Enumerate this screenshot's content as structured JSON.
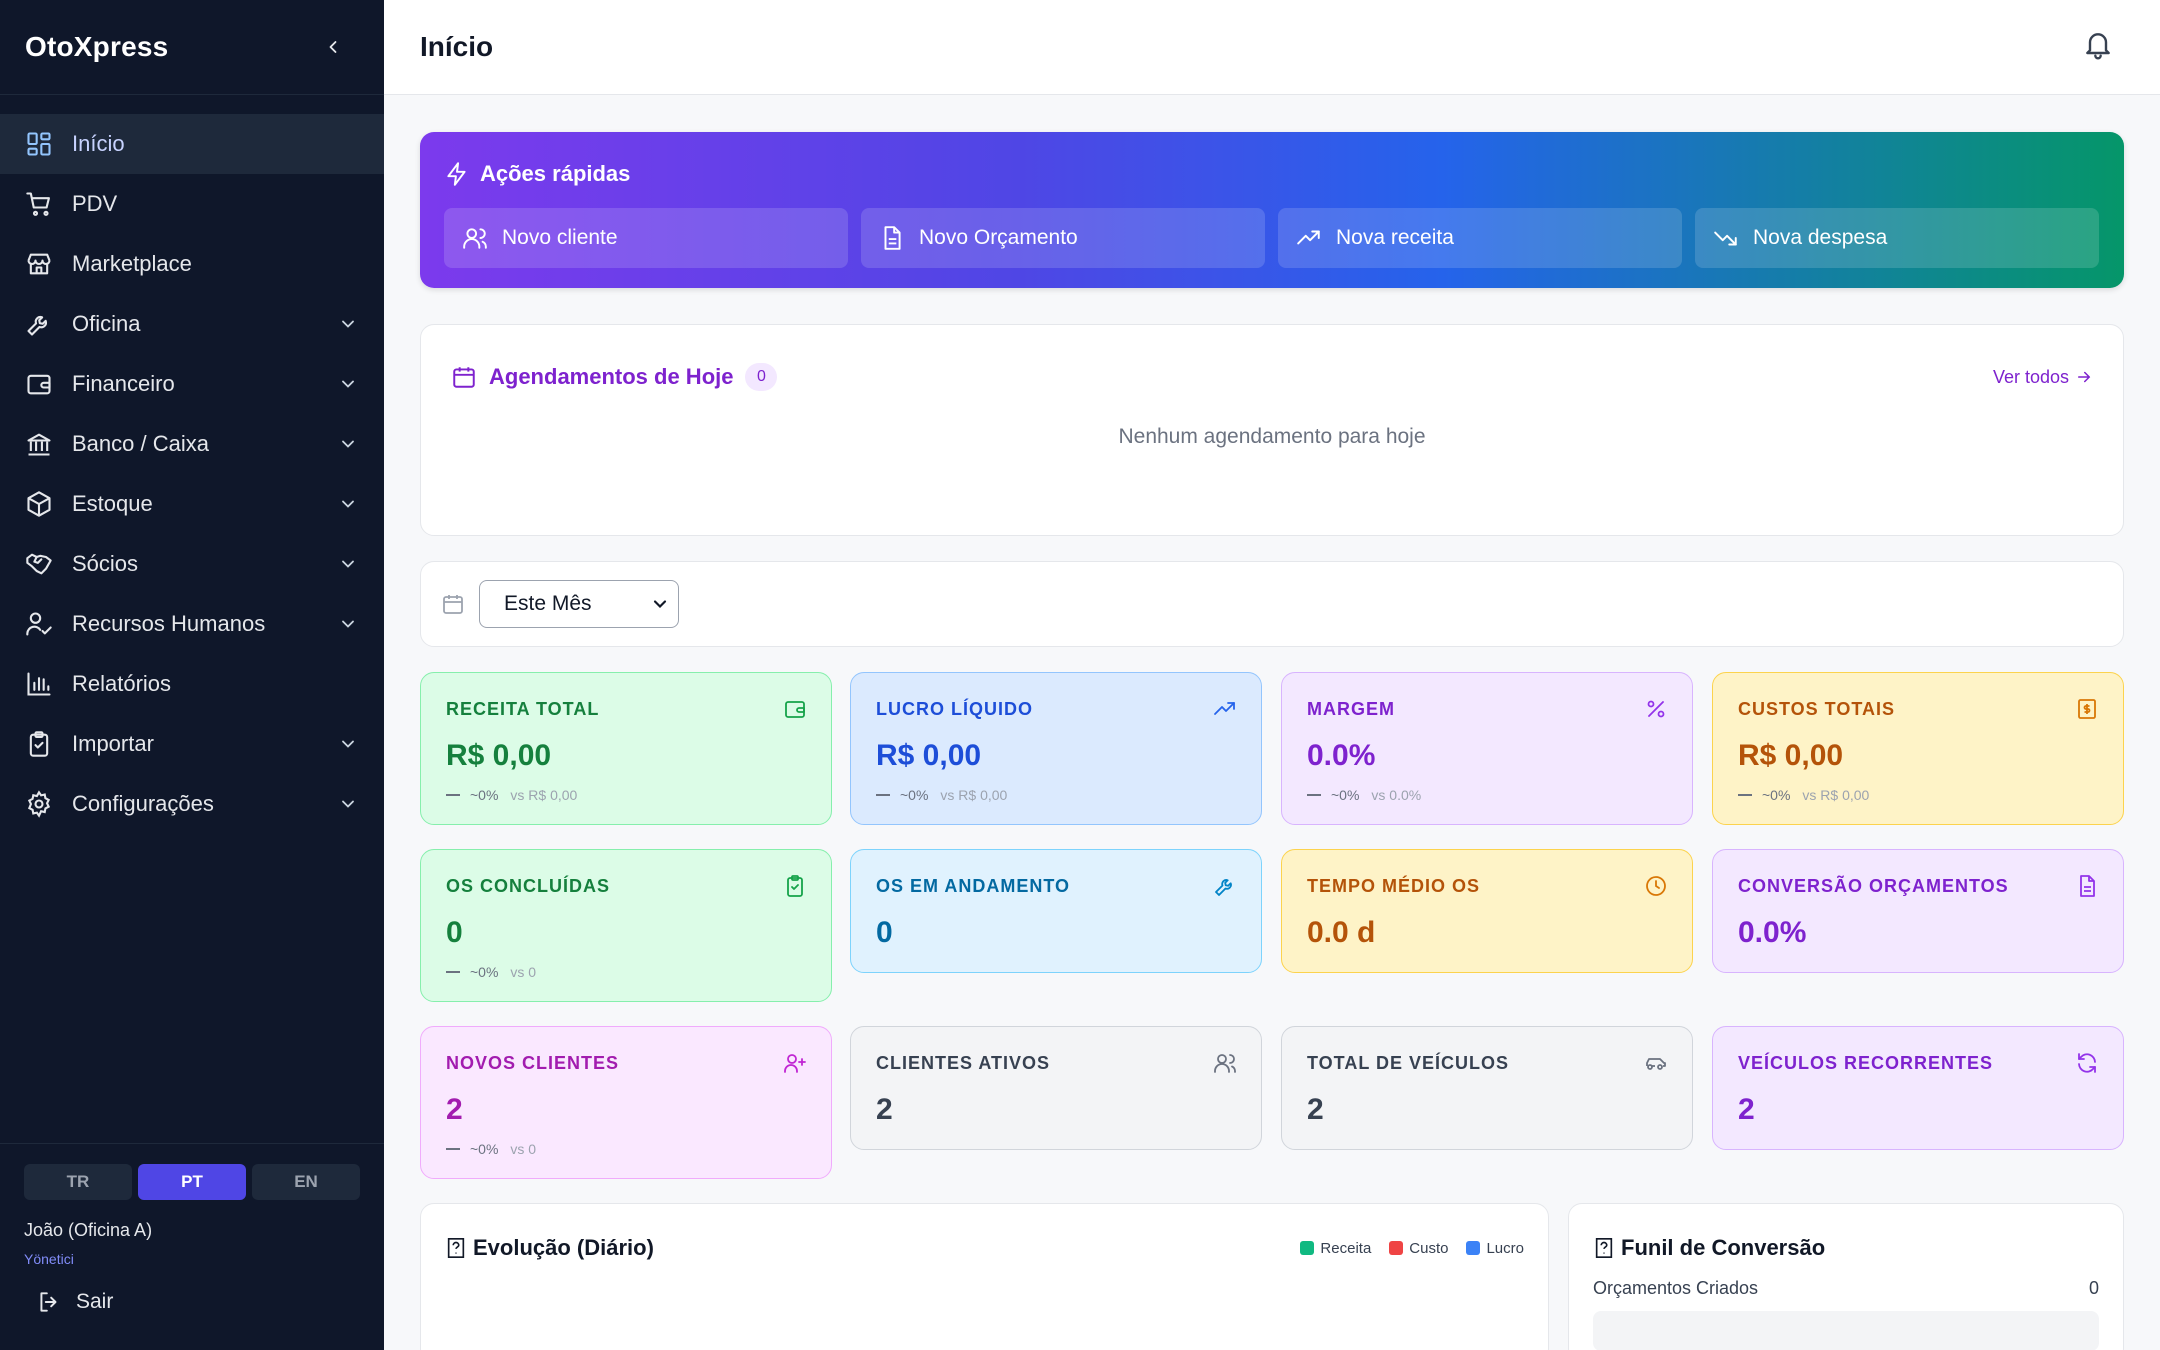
{
  "app": {
    "brand": "OtoXpress"
  },
  "sidebar": {
    "items": [
      {
        "label": "Início",
        "icon": "dashboard-grid-icon",
        "active": true,
        "expandable": false
      },
      {
        "label": "PDV",
        "icon": "cart-icon",
        "expandable": false
      },
      {
        "label": "Marketplace",
        "icon": "store-icon",
        "expandable": false
      },
      {
        "label": "Oficina",
        "icon": "wrench-icon",
        "expandable": true
      },
      {
        "label": "Financeiro",
        "icon": "wallet-icon",
        "expandable": true
      },
      {
        "label": "Banco / Caixa",
        "icon": "bank-icon",
        "expandable": true
      },
      {
        "label": "Estoque",
        "icon": "box-icon",
        "expandable": true
      },
      {
        "label": "Sócios",
        "icon": "handshake-icon",
        "expandable": true
      },
      {
        "label": "Recursos Humanos",
        "icon": "user-check-icon",
        "expandable": true
      },
      {
        "label": "Relatórios",
        "icon": "bar-chart-icon",
        "expandable": false
      },
      {
        "label": "Importar",
        "icon": "clipboard-icon",
        "expandable": true
      },
      {
        "label": "Configurações",
        "icon": "gear-icon",
        "expandable": true
      }
    ],
    "languages": [
      "TR",
      "PT",
      "EN"
    ],
    "active_language": "PT",
    "user": {
      "name": "João (Oficina A)",
      "role": "Yönetici"
    },
    "logout_label": "Sair"
  },
  "header": {
    "title": "Início"
  },
  "quick_actions": {
    "title": "Ações rápidas",
    "buttons": [
      {
        "label": "Novo cliente",
        "icon": "users-icon"
      },
      {
        "label": "Novo Orçamento",
        "icon": "document-icon"
      },
      {
        "label": "Nova receita",
        "icon": "trending-up-icon"
      },
      {
        "label": "Nova despesa",
        "icon": "trending-down-icon"
      }
    ]
  },
  "appointments": {
    "title": "Agendamentos de Hoje",
    "count": "0",
    "see_all": "Ver todos",
    "empty": "Nenhum agendamento para hoje"
  },
  "period": {
    "selected": "Este Mês"
  },
  "kpis": [
    {
      "label": "RECEITA TOTAL",
      "value": "R$ 0,00",
      "change": "~0%",
      "compare": "vs R$ 0,00",
      "theme": "green",
      "icon": "wallet-icon"
    },
    {
      "label": "LUCRO LÍQUIDO",
      "value": "R$ 0,00",
      "change": "~0%",
      "compare": "vs R$ 0,00",
      "theme": "blue",
      "icon": "trending-up-icon"
    },
    {
      "label": "MARGEM",
      "value": "0.0%",
      "change": "~0%",
      "compare": "vs 0.0%",
      "theme": "purple",
      "icon": "percent-icon"
    },
    {
      "label": "CUSTOS TOTAIS",
      "value": "R$ 0,00",
      "change": "~0%",
      "compare": "vs R$ 0,00",
      "theme": "amber",
      "icon": "receipt-icon"
    },
    {
      "label": "OS CONCLUÍDAS",
      "value": "0",
      "change": "~0%",
      "compare": "vs 0",
      "theme": "green",
      "icon": "clipboard-check-icon"
    },
    {
      "label": "OS EM ANDAMENTO",
      "value": "0",
      "theme": "sky",
      "icon": "wrench-icon"
    },
    {
      "label": "TEMPO MÉDIO OS",
      "value": "0.0 d",
      "theme": "amber",
      "icon": "clock-icon"
    },
    {
      "label": "CONVERSÃO ORÇAMENTOS",
      "value": "0.0%",
      "theme": "purple",
      "icon": "document-icon"
    },
    {
      "label": "NOVOS CLIENTES",
      "value": "2",
      "change": "~0%",
      "compare": "vs 0",
      "theme": "pink",
      "icon": "user-plus-icon"
    },
    {
      "label": "CLIENTES ATIVOS",
      "value": "2",
      "theme": "gray",
      "icon": "users-icon"
    },
    {
      "label": "TOTAL DE VEÍCULOS",
      "value": "2",
      "theme": "gray",
      "icon": "car-icon"
    },
    {
      "label": "VEÍCULOS RECORRENTES",
      "value": "2",
      "theme": "purple",
      "icon": "refresh-icon"
    }
  ],
  "evolution": {
    "title": "Evolução (Diário)",
    "legend": [
      {
        "label": "Receita",
        "color": "#10b981"
      },
      {
        "label": "Custo",
        "color": "#ef4444"
      },
      {
        "label": "Lucro",
        "color": "#3b82f6"
      }
    ]
  },
  "funnel": {
    "title": "Funil de Conversão",
    "rows": [
      {
        "label": "Orçamentos Criados",
        "value": "0"
      }
    ]
  }
}
